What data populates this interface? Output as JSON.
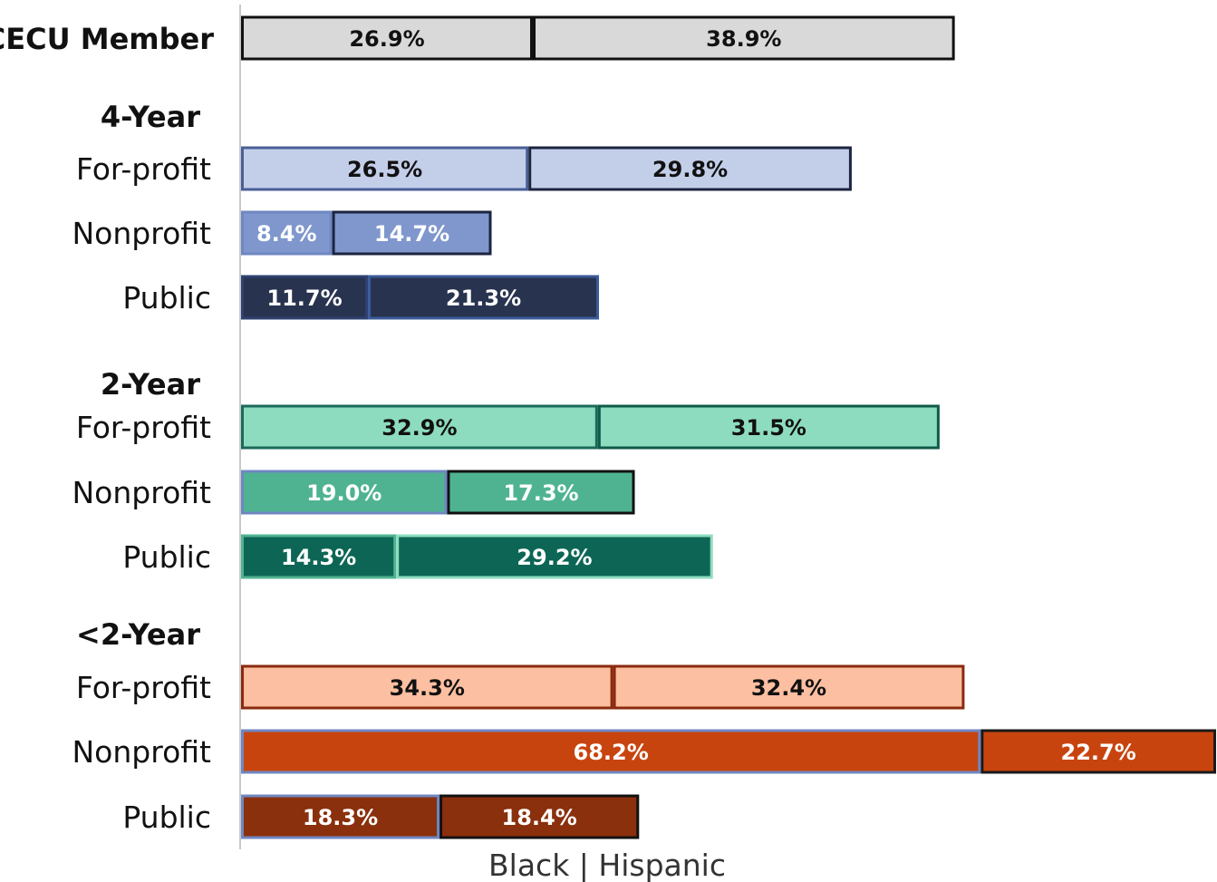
{
  "chart_data": {
    "type": "bar",
    "orientation": "horizontal",
    "stacked": true,
    "xlabel": "Black | Hispanic",
    "grid": false,
    "legend": "none",
    "series": [
      {
        "name": "Black"
      },
      {
        "name": "Hispanic"
      }
    ],
    "rows": [
      {
        "kind": "bar",
        "label": "CECU Member",
        "label_bold": true,
        "values": [
          26.9,
          38.9
        ],
        "value_labels": [
          "26.9%",
          "38.9%"
        ],
        "fill": [
          "#d9d9d9",
          "#d9d9d9"
        ],
        "stroke": [
          "#111111",
          "#111111"
        ],
        "text_color": "#111111"
      },
      {
        "kind": "group",
        "label": "4-Year"
      },
      {
        "kind": "bar",
        "label": "For-profit",
        "values": [
          26.5,
          29.8
        ],
        "value_labels": [
          "26.5%",
          "29.8%"
        ],
        "fill": [
          "#c3cee9",
          "#c3cee9"
        ],
        "stroke": [
          "#4a5f96",
          "#1c2540"
        ],
        "text_color": "#111111"
      },
      {
        "kind": "bar",
        "label": "Nonprofit",
        "values": [
          8.4,
          14.7
        ],
        "value_labels": [
          "8.4%",
          "14.7%"
        ],
        "fill": [
          "#7f97cc",
          "#7f97cc"
        ],
        "stroke": [
          "#6f87c2",
          "#1c2540"
        ],
        "text_color": "#ffffff"
      },
      {
        "kind": "bar",
        "label": "Public",
        "values": [
          11.7,
          21.3
        ],
        "value_labels": [
          "11.7%",
          "21.3%"
        ],
        "fill": [
          "#28334f",
          "#28334f"
        ],
        "stroke": [
          "#2e4170",
          "#3a5a9a"
        ],
        "text_color": "#ffffff"
      },
      {
        "kind": "group",
        "label": "2-Year"
      },
      {
        "kind": "bar",
        "label": "For-profit",
        "values": [
          32.9,
          31.5
        ],
        "value_labels": [
          "32.9%",
          "31.5%"
        ],
        "fill": [
          "#8edcbf",
          "#8edcbf"
        ],
        "stroke": [
          "#1a6a58",
          "#0f5a48"
        ],
        "text_color": "#111111"
      },
      {
        "kind": "bar",
        "label": "Nonprofit",
        "values": [
          19.0,
          17.3
        ],
        "value_labels": [
          "19.0%",
          "17.3%"
        ],
        "fill": [
          "#4fb391",
          "#4fb391"
        ],
        "stroke": [
          "#6f87c2",
          "#111111"
        ],
        "text_color": "#ffffff"
      },
      {
        "kind": "bar",
        "label": "Public",
        "values": [
          14.3,
          29.2
        ],
        "value_labels": [
          "14.3%",
          "29.2%"
        ],
        "fill": [
          "#0d6655",
          "#0d6655"
        ],
        "stroke": [
          "#4fb391",
          "#8edcbf"
        ],
        "text_color": "#ffffff"
      },
      {
        "kind": "group",
        "label": "<2-Year"
      },
      {
        "kind": "bar",
        "label": "For-profit",
        "values": [
          34.3,
          32.4
        ],
        "value_labels": [
          "34.3%",
          "32.4%"
        ],
        "fill": [
          "#fdbfa1",
          "#fdbfa1"
        ],
        "stroke": [
          "#8a2a0e",
          "#8a2a0e"
        ],
        "text_color": "#111111"
      },
      {
        "kind": "bar",
        "label": "Nonprofit",
        "values": [
          68.2,
          22.7
        ],
        "value_labels": [
          "68.2%",
          "22.7%"
        ],
        "fill": [
          "#c8440f",
          "#c8440f"
        ],
        "stroke": [
          "#6f87c2",
          "#1a1a1a"
        ],
        "text_color": "#ffffff"
      },
      {
        "kind": "bar",
        "label": "Public",
        "values": [
          18.3,
          18.4
        ],
        "value_labels": [
          "18.3%",
          "18.4%"
        ],
        "fill": [
          "#8a300c",
          "#8a300c"
        ],
        "stroke": [
          "#6f87c2",
          "#111111"
        ],
        "text_color": "#ffffff"
      }
    ]
  }
}
